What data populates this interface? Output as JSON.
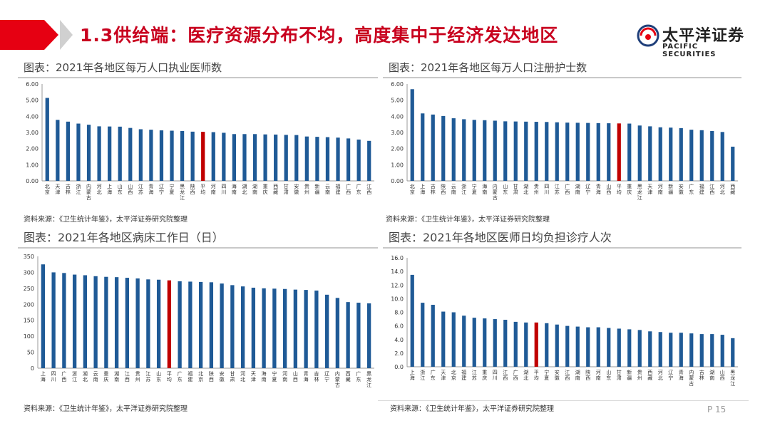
{
  "slide": {
    "title": "1.3供给端：医疗资源分布不均，高度集中于经济发达地区",
    "page": "P 15",
    "logo_cn": "太平洋证券",
    "logo_en": "PACIFIC SECURITIES"
  },
  "colors": {
    "bar": "#1f5a96",
    "highlight": "#c00000",
    "accent": "#e60012"
  },
  "chart_data": [
    {
      "type": "bar",
      "title": "图表：2021年各地区每万人口执业医师数",
      "source": "资料来源：《卫生统计年鉴》，太平洋证券研究院整理",
      "categories": [
        "北京",
        "天津",
        "吉林",
        "浙江",
        "内蒙古",
        "河北",
        "上海",
        "山东",
        "山西",
        "江苏",
        "青海",
        "辽宁",
        "宁夏",
        "黑龙江",
        "陕西",
        "平均",
        "河南",
        "四川",
        "海南",
        "湖北",
        "湖南",
        "重庆",
        "西藏",
        "甘肃",
        "安徽",
        "贵州",
        "新疆",
        "云南",
        "福建",
        "广西",
        "广东",
        "江西"
      ],
      "values": [
        5.14,
        3.78,
        3.67,
        3.55,
        3.48,
        3.38,
        3.37,
        3.36,
        3.28,
        3.2,
        3.17,
        3.13,
        3.11,
        3.09,
        3.05,
        3.04,
        3.02,
        2.98,
        2.9,
        2.9,
        2.9,
        2.88,
        2.87,
        2.85,
        2.84,
        2.75,
        2.73,
        2.71,
        2.68,
        2.63,
        2.56,
        2.48
      ],
      "highlight": "平均",
      "ylim": [
        0,
        6
      ],
      "yticks": [
        "0.00",
        "1.00",
        "2.00",
        "3.00",
        "4.00",
        "5.00",
        "6.00"
      ]
    },
    {
      "type": "bar",
      "title": "图表：2021年各地区每万人口注册护士数",
      "source": "资料来源：《卫生统计年鉴》，太平洋证券研究院整理",
      "categories": [
        "北京",
        "上海",
        "吉林",
        "陕西",
        "云南",
        "浙江",
        "宁夏",
        "海南",
        "内蒙古",
        "山东",
        "甘肃",
        "湖北",
        "贵州",
        "四川",
        "江苏",
        "广西",
        "湖南",
        "辽宁",
        "青海",
        "山西",
        "平均",
        "重庆",
        "黑龙江",
        "天津",
        "河南",
        "新疆",
        "安徽",
        "广东",
        "福建",
        "江西",
        "河北",
        "西藏"
      ],
      "values": [
        5.68,
        4.18,
        4.11,
        4.02,
        3.88,
        3.82,
        3.78,
        3.76,
        3.73,
        3.69,
        3.68,
        3.67,
        3.66,
        3.65,
        3.63,
        3.61,
        3.6,
        3.59,
        3.58,
        3.57,
        3.56,
        3.55,
        3.43,
        3.38,
        3.32,
        3.3,
        3.27,
        3.17,
        3.14,
        3.09,
        3.03,
        2.12
      ],
      "highlight": "平均",
      "ylim": [
        0,
        6
      ],
      "yticks": [
        "0.00",
        "1.00",
        "2.00",
        "3.00",
        "4.00",
        "5.00",
        "6.00"
      ]
    },
    {
      "type": "bar",
      "title": "图表：2021年各地区病床工作日（日）",
      "source": "资料来源：《卫生统计年鉴》，太平洋证券研究院整理",
      "categories": [
        "上海",
        "四川",
        "广西",
        "浙江",
        "湖北",
        "云南",
        "重庆",
        "湖南",
        "江西",
        "贵州",
        "江苏",
        "山东",
        "平均",
        "广东",
        "福建",
        "北京",
        "陕西",
        "安徽",
        "甘肃",
        "河北",
        "天津",
        "海南",
        "宁夏",
        "河南",
        "山西",
        "青海",
        "吉林",
        "辽宁",
        "内蒙古",
        "西藏",
        "广东",
        "黑龙江"
      ],
      "values": [
        325,
        300,
        298,
        293,
        291,
        288,
        286,
        285,
        283,
        281,
        278,
        277,
        275,
        272,
        271,
        270,
        269,
        265,
        260,
        256,
        252,
        250,
        249,
        248,
        246,
        245,
        243,
        230,
        220,
        207,
        205,
        203
      ],
      "highlight": "平均",
      "ylim": [
        0,
        350
      ],
      "yticks": [
        "0",
        "50",
        "100",
        "150",
        "200",
        "250",
        "300",
        "350"
      ]
    },
    {
      "type": "bar",
      "title": "图表：2021年各地区医师日均负担诊疗人次",
      "source": "资料来源：《卫生统计年鉴》，太平洋证券研究院整理",
      "categories": [
        "上海",
        "浙江",
        "广东",
        "天津",
        "北京",
        "福建",
        "江苏",
        "重庆",
        "四川",
        "江西",
        "广西",
        "湖北",
        "平均",
        "宁夏",
        "安徽",
        "江西",
        "湖南",
        "陕西",
        "河南",
        "山东",
        "甘肃",
        "新疆",
        "贵州",
        "西藏",
        "河北",
        "辽宁",
        "青海",
        "内蒙古",
        "吉林",
        "湖南",
        "山西",
        "黑龙江"
      ],
      "values": [
        13.5,
        9.4,
        9.1,
        8.1,
        8.0,
        7.5,
        7.2,
        7.1,
        7.0,
        6.9,
        6.6,
        6.5,
        6.5,
        6.4,
        6.2,
        6.0,
        5.9,
        5.8,
        5.8,
        5.7,
        5.6,
        5.5,
        5.4,
        5.2,
        5.1,
        5.0,
        5.0,
        4.9,
        4.8,
        4.8,
        4.7,
        4.2
      ],
      "highlight": "平均",
      "ylim": [
        0,
        16
      ],
      "yticks": [
        "0.0",
        "2.0",
        "4.0",
        "6.0",
        "8.0",
        "10.0",
        "12.0",
        "14.0",
        "16.0"
      ]
    }
  ]
}
